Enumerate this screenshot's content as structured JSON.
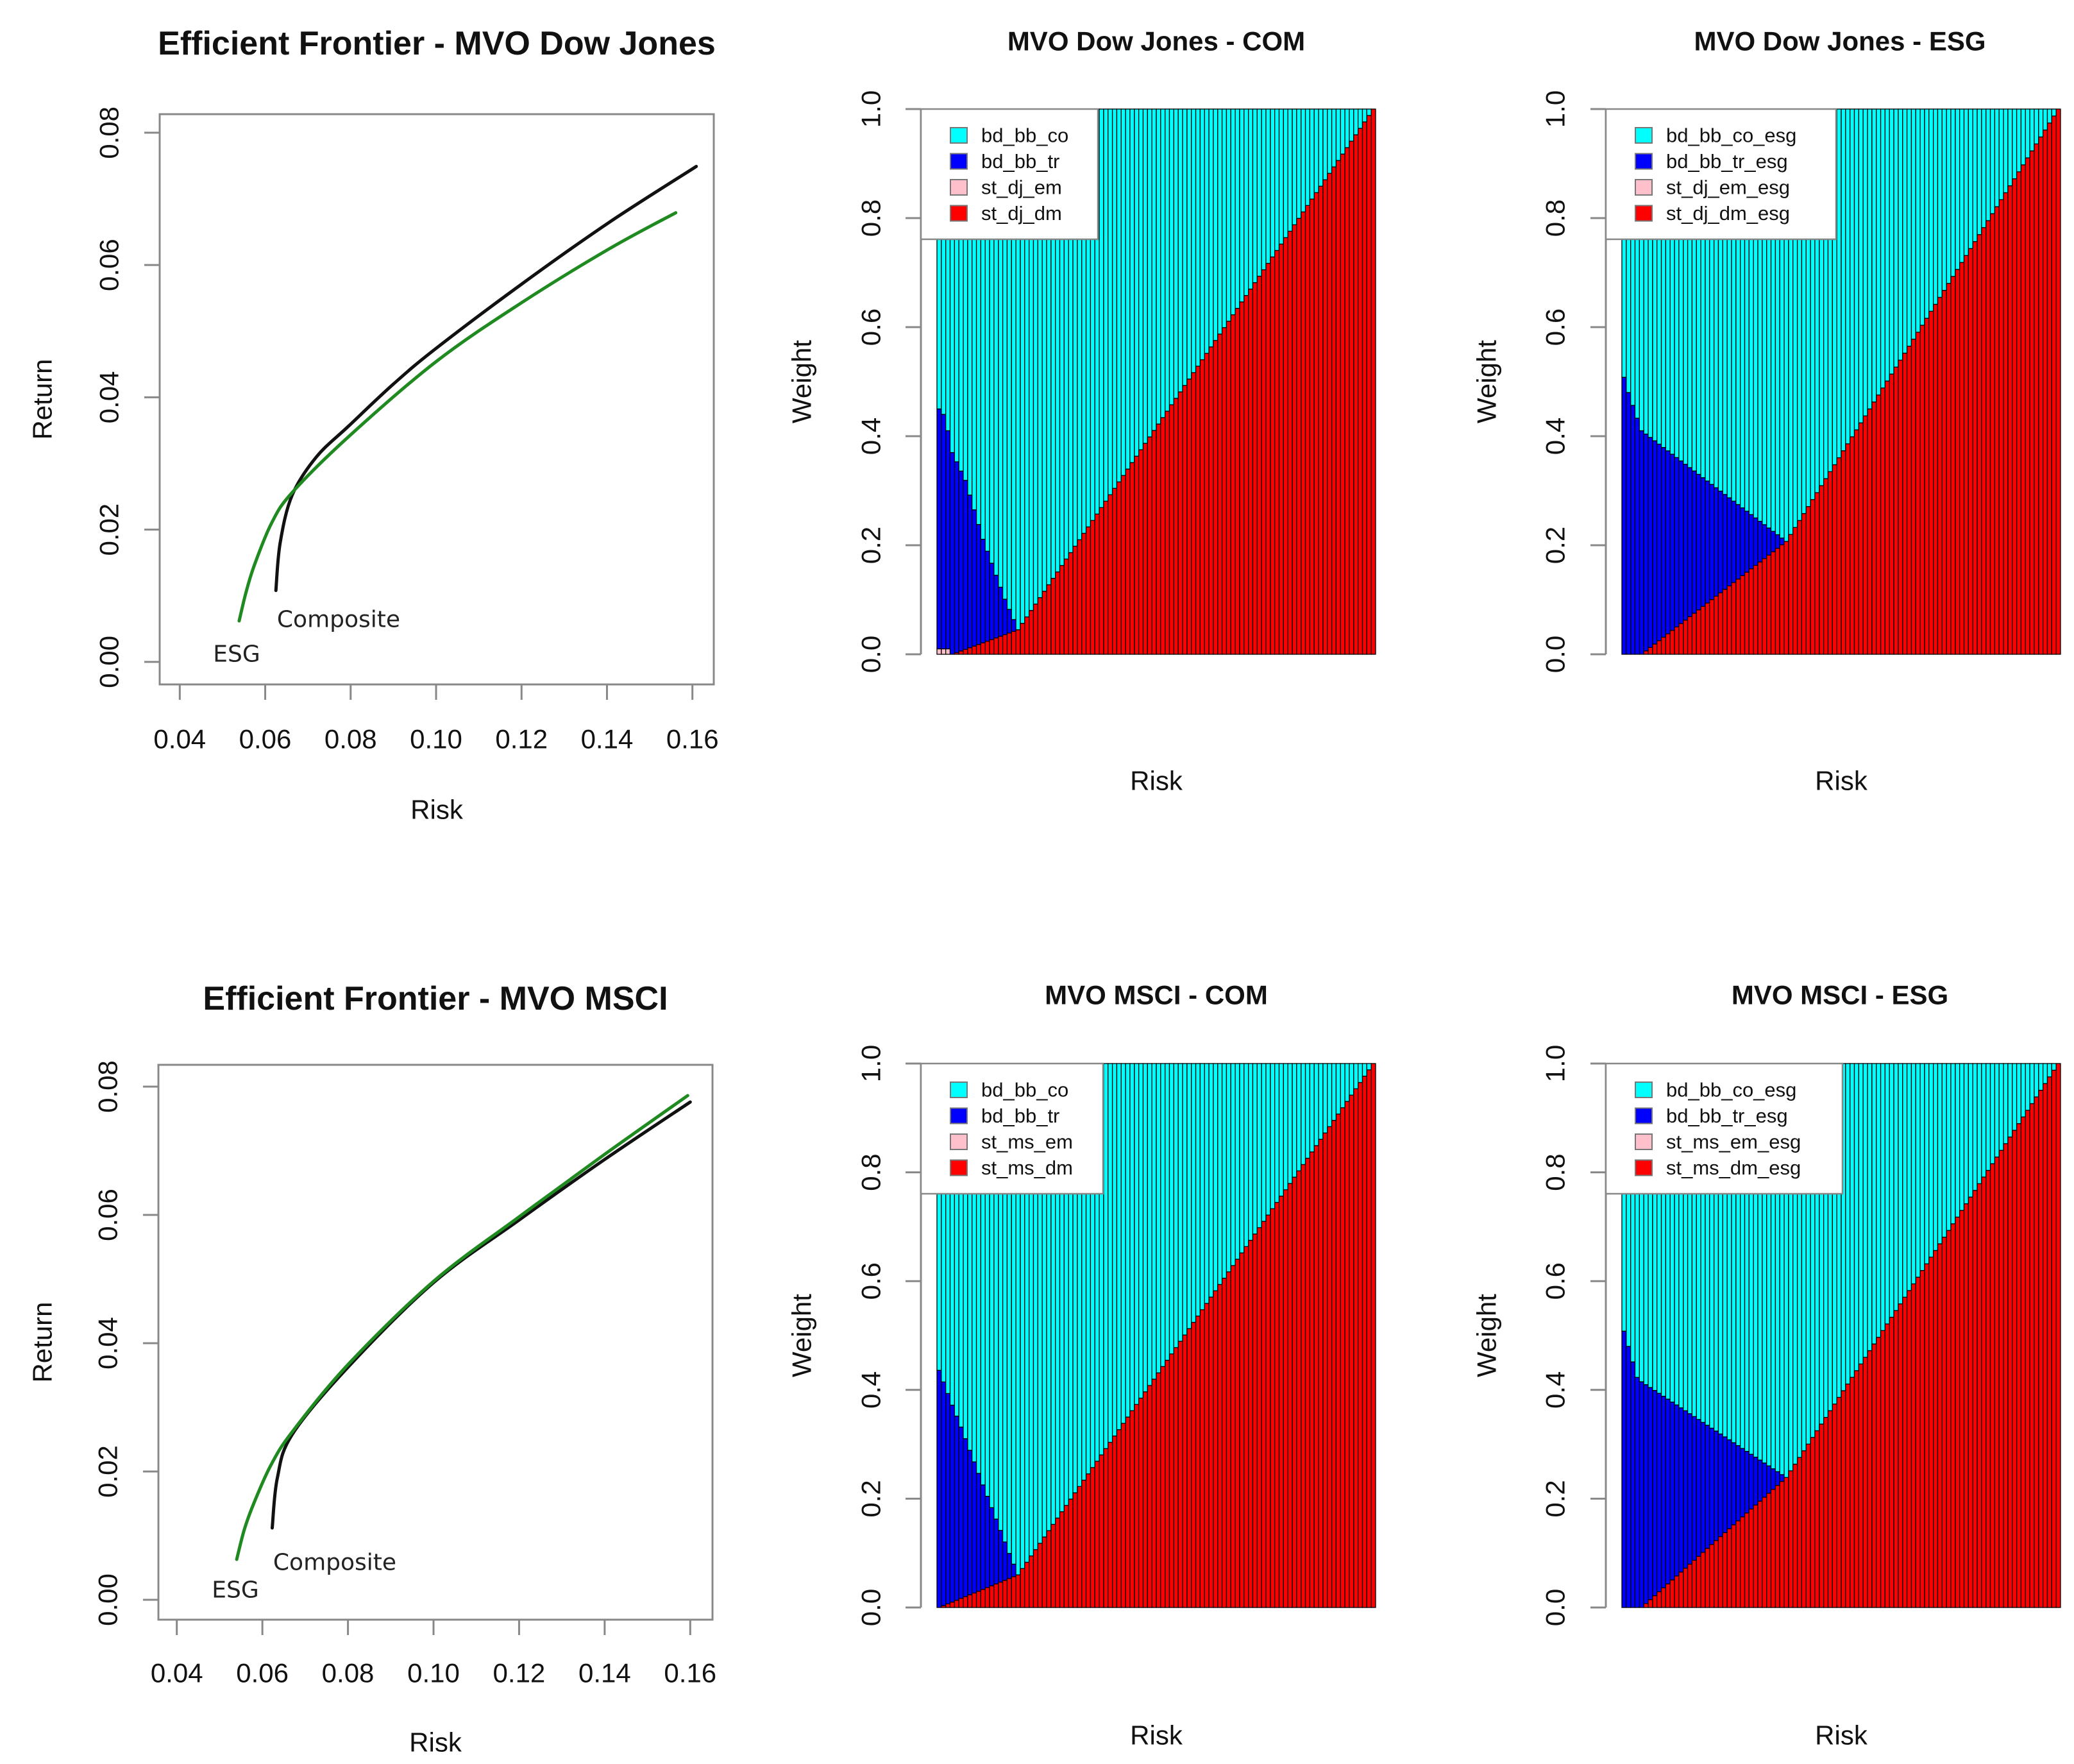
{
  "colors": {
    "cyan": "#00FFFF",
    "blue": "#0000FF",
    "pink": "#FFC0CB",
    "red": "#FF0000",
    "composite": "#111111",
    "esg": "#1f8a1f",
    "axis": "#888888"
  },
  "chart_data": [
    {
      "id": "frontier_dj",
      "type": "line",
      "title": "Efficient Frontier - MVO Dow Jones",
      "xlabel": "Risk",
      "ylabel": "Return",
      "xlim": [
        0.0353,
        0.165
      ],
      "ylim": [
        -0.0034,
        0.0828
      ],
      "xticks": [
        "0.04",
        "0.06",
        "0.08",
        "0.10",
        "0.12",
        "0.14",
        "0.16"
      ],
      "yticks": [
        "0.00",
        "0.02",
        "0.04",
        "0.06",
        "0.08"
      ],
      "series": [
        {
          "name": "Composite",
          "label": "Composite",
          "color": "composite",
          "points": [
            [
              0.0625,
              0.0108
            ],
            [
              0.0635,
              0.018
            ],
            [
              0.0663,
              0.0252
            ],
            [
              0.072,
              0.031
            ],
            [
              0.0796,
              0.0357
            ],
            [
              0.09,
              0.042
            ],
            [
              0.1,
              0.0474
            ],
            [
              0.12,
              0.0571
            ],
            [
              0.1404,
              0.0664
            ],
            [
              0.1609,
              0.0749
            ]
          ]
        },
        {
          "name": "ESG",
          "label": "ESG",
          "color": "esg",
          "points": [
            [
              0.0539,
              0.0062
            ],
            [
              0.0555,
              0.0105
            ],
            [
              0.0575,
              0.0147
            ],
            [
              0.0615,
              0.021
            ],
            [
              0.0663,
              0.0256
            ],
            [
              0.0796,
              0.0341
            ],
            [
              0.1,
              0.0454
            ],
            [
              0.12,
              0.0543
            ],
            [
              0.1404,
              0.0624
            ],
            [
              0.1561,
              0.0679
            ]
          ]
        }
      ]
    },
    {
      "id": "weights_dj_com",
      "type": "bar",
      "stacked": true,
      "title": "MVO Dow Jones - COM",
      "xlabel": "Risk",
      "ylabel": "Weight",
      "ylim": [
        0,
        1
      ],
      "yticks": [
        "0.0",
        "0.2",
        "0.4",
        "0.6",
        "0.8",
        "1.0"
      ],
      "n_bars": 100,
      "legend_position": "top-left",
      "series": [
        {
          "name": "st_dj_em",
          "color": "pink",
          "breakpoints": [
            [
              0,
              0.01
            ],
            [
              2,
              0.01
            ],
            [
              3,
              0
            ],
            [
              99,
              0
            ]
          ]
        },
        {
          "name": "st_dj_dm",
          "color": "red",
          "breakpoints": [
            [
              0,
              0
            ],
            [
              3,
              0
            ],
            [
              18,
              0.045
            ],
            [
              99,
              1
            ]
          ]
        },
        {
          "name": "bd_bb_tr",
          "color": "blue",
          "breakpoints": [
            [
              0,
              0.44
            ],
            [
              1,
              0.43
            ],
            [
              3,
              0.37
            ],
            [
              6,
              0.31
            ],
            [
              10,
              0.19
            ],
            [
              15,
              0.065
            ],
            [
              18,
              0
            ],
            [
              99,
              0
            ]
          ]
        },
        {
          "name": "bd_bb_co",
          "color": "cyan",
          "breakpoints": [
            [
              0,
              0.55
            ],
            [
              3,
              0.62
            ],
            [
              6,
              0.68
            ],
            [
              10,
              0.79
            ],
            [
              15,
              0.9
            ],
            [
              18,
              0.955
            ],
            [
              99,
              0
            ]
          ]
        }
      ],
      "legend": [
        "bd_bb_co",
        "bd_bb_tr",
        "st_dj_em",
        "st_dj_dm"
      ]
    },
    {
      "id": "weights_dj_esg",
      "type": "bar",
      "stacked": true,
      "title": "MVO Dow Jones - ESG",
      "xlabel": "Risk",
      "ylabel": "Weight",
      "ylim": [
        0,
        1
      ],
      "yticks": [
        "0.0",
        "0.2",
        "0.4",
        "0.6",
        "0.8",
        "1.0"
      ],
      "n_bars": 100,
      "legend_position": "top-left",
      "series": [
        {
          "name": "st_dj_em_esg",
          "color": "pink",
          "breakpoints": [
            [
              0,
              0
            ],
            [
              99,
              0
            ]
          ]
        },
        {
          "name": "st_dj_dm_esg",
          "color": "red",
          "breakpoints": [
            [
              0,
              0
            ],
            [
              4,
              0
            ],
            [
              37,
              0.207
            ],
            [
              99,
              1
            ]
          ]
        },
        {
          "name": "bd_bb_tr_esg",
          "color": "blue",
          "breakpoints": [
            [
              0,
              0.508
            ],
            [
              1,
              0.48
            ],
            [
              3,
              0.433
            ],
            [
              4,
              0.41
            ],
            [
              37,
              0
            ],
            [
              99,
              0
            ]
          ]
        },
        {
          "name": "bd_bb_co_esg",
          "color": "cyan",
          "breakpoints": [
            [
              0,
              0.492
            ],
            [
              1,
              0.52
            ],
            [
              3,
              0.567
            ],
            [
              4,
              0.59
            ],
            [
              37,
              0.793
            ],
            [
              99,
              0
            ]
          ]
        }
      ],
      "legend": [
        "bd_bb_co_esg",
        "bd_bb_tr_esg",
        "st_dj_em_esg",
        "st_dj_dm_esg"
      ]
    },
    {
      "id": "frontier_msci",
      "type": "line",
      "title": "Efficient Frontier - MVO MSCI",
      "xlabel": "Risk",
      "ylabel": "Return",
      "xlim": [
        0.0357,
        0.1652
      ],
      "ylim": [
        -0.0031,
        0.0834
      ],
      "xticks": [
        "0.04",
        "0.06",
        "0.08",
        "0.10",
        "0.12",
        "0.14",
        "0.16"
      ],
      "yticks": [
        "0.00",
        "0.02",
        "0.04",
        "0.06",
        "0.08"
      ],
      "series": [
        {
          "name": "Composite",
          "label": "Composite",
          "color": "composite",
          "points": [
            [
              0.0623,
              0.0112
            ],
            [
              0.0635,
              0.019
            ],
            [
              0.067,
              0.0258
            ],
            [
              0.0802,
              0.0364
            ],
            [
              0.1001,
              0.0495
            ],
            [
              0.12,
              0.0592
            ],
            [
              0.1399,
              0.0686
            ],
            [
              0.16,
              0.0776
            ]
          ]
        },
        {
          "name": "ESG",
          "label": "ESG",
          "color": "esg",
          "points": [
            [
              0.054,
              0.0063
            ],
            [
              0.0558,
              0.011
            ],
            [
              0.0581,
              0.0152
            ],
            [
              0.062,
              0.021
            ],
            [
              0.067,
              0.0262
            ],
            [
              0.0802,
              0.0368
            ],
            [
              0.1001,
              0.0497
            ],
            [
              0.12,
              0.0597
            ],
            [
              0.1399,
              0.0694
            ],
            [
              0.1594,
              0.0786
            ]
          ]
        }
      ]
    },
    {
      "id": "weights_msci_com",
      "type": "bar",
      "stacked": true,
      "title": "MVO MSCI - COM",
      "xlabel": "Risk",
      "ylabel": "Weight",
      "ylim": [
        0,
        1
      ],
      "yticks": [
        "0.0",
        "0.2",
        "0.4",
        "0.6",
        "0.8",
        "1.0"
      ],
      "n_bars": 100,
      "legend_position": "top-left",
      "series": [
        {
          "name": "st_ms_em",
          "color": "pink",
          "breakpoints": [
            [
              0,
              0
            ],
            [
              99,
              0
            ]
          ]
        },
        {
          "name": "st_ms_dm",
          "color": "red",
          "breakpoints": [
            [
              0,
              0
            ],
            [
              18,
              0.06
            ],
            [
              99,
              1
            ]
          ]
        },
        {
          "name": "bd_bb_tr",
          "color": "blue",
          "breakpoints": [
            [
              0,
              0.436
            ],
            [
              3,
              0.362
            ],
            [
              5,
              0.315
            ],
            [
              8,
              0.241
            ],
            [
              10,
              0.192
            ],
            [
              14,
              0.095
            ],
            [
              16,
              0.046
            ],
            [
              18,
              0
            ],
            [
              99,
              0
            ]
          ]
        },
        {
          "name": "bd_bb_co",
          "color": "cyan",
          "breakpoints": [
            [
              0,
              0.564
            ],
            [
              3,
              0.628
            ],
            [
              5,
              0.668
            ],
            [
              8,
              0.732
            ],
            [
              10,
              0.775
            ],
            [
              14,
              0.858
            ],
            [
              16,
              0.901
            ],
            [
              18,
              0.94
            ],
            [
              99,
              0
            ]
          ]
        }
      ],
      "legend": [
        "bd_bb_co",
        "bd_bb_tr",
        "st_ms_em",
        "st_ms_dm"
      ]
    },
    {
      "id": "weights_msci_esg",
      "type": "bar",
      "stacked": true,
      "title": "MVO MSCI - ESG",
      "xlabel": "Risk",
      "ylabel": "Weight",
      "ylim": [
        0,
        1
      ],
      "yticks": [
        "0.0",
        "0.2",
        "0.4",
        "0.6",
        "0.8",
        "1.0"
      ],
      "n_bars": 100,
      "legend_position": "top-left",
      "series": [
        {
          "name": "st_ms_em_esg",
          "color": "pink",
          "breakpoints": [
            [
              0,
              0
            ],
            [
              99,
              0
            ]
          ]
        },
        {
          "name": "st_ms_dm_esg",
          "color": "red",
          "breakpoints": [
            [
              0,
              0
            ],
            [
              4,
              0
            ],
            [
              37,
              0.239
            ],
            [
              99,
              1
            ]
          ]
        },
        {
          "name": "bd_bb_tr_esg",
          "color": "blue",
          "breakpoints": [
            [
              0,
              0.508
            ],
            [
              1,
              0.48
            ],
            [
              3,
              0.423
            ],
            [
              4,
              0.415
            ],
            [
              37,
              0
            ],
            [
              99,
              0
            ]
          ]
        },
        {
          "name": "bd_bb_co_esg",
          "color": "cyan",
          "breakpoints": [
            [
              0,
              0.492
            ],
            [
              1,
              0.52
            ],
            [
              3,
              0.577
            ],
            [
              4,
              0.585
            ],
            [
              37,
              0.761
            ],
            [
              99,
              0
            ]
          ]
        }
      ],
      "legend": [
        "bd_bb_co_esg",
        "bd_bb_tr_esg",
        "st_ms_em_esg",
        "st_ms_dm_esg"
      ]
    }
  ]
}
